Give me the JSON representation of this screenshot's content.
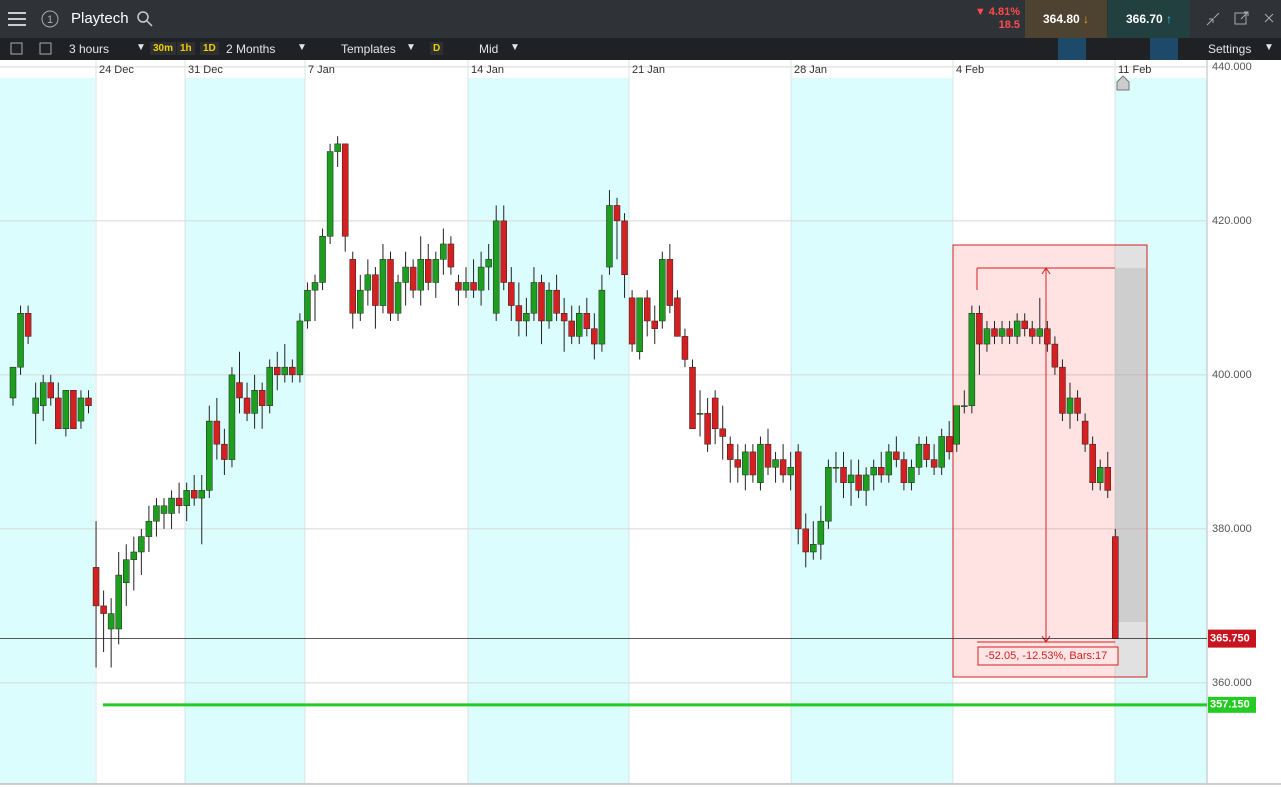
{
  "header": {
    "title": "Playtech",
    "change_pct": "▼ 4.81%",
    "change_abs": "18.5",
    "sell": "364.80",
    "buy": "366.70"
  },
  "toolbar": {
    "interval": "3 hours",
    "quick": [
      "30m",
      "1h",
      "1D"
    ],
    "range": "2 Months",
    "templates": "Templates",
    "d": "D",
    "price_type": "Mid",
    "settings": "Settings"
  },
  "chart_data": {
    "type": "candlestick",
    "x_labels": [
      "24 Dec",
      "31 Dec",
      "7 Jan",
      "14 Jan",
      "21 Jan",
      "28 Jan",
      "4 Feb",
      "11 Feb"
    ],
    "up_color": "#1e9e1e",
    "down_color": "#d42020",
    "ylim": [
      347,
      440.5
    ],
    "yticks": [
      {
        "value": 440,
        "label": "440.000"
      },
      {
        "value": 420,
        "label": "420.000"
      },
      {
        "value": 400,
        "label": "400.000"
      },
      {
        "value": 380,
        "label": "380.000"
      },
      {
        "value": 360,
        "label": "360.000"
      }
    ],
    "candles": [
      [
        397,
        401,
        396,
        401
      ],
      [
        401,
        409,
        400,
        408
      ],
      [
        408,
        409,
        404,
        405
      ],
      [
        395,
        399,
        391,
        397
      ],
      [
        396,
        400,
        394,
        399
      ],
      [
        399,
        400,
        396,
        397
      ],
      [
        397,
        399,
        393,
        393
      ],
      [
        393,
        398,
        392,
        398
      ],
      [
        398,
        398,
        393,
        393
      ],
      [
        394,
        398,
        393,
        397
      ],
      [
        397,
        398,
        395,
        396
      ],
      [
        375,
        381,
        362,
        370
      ],
      [
        370,
        372,
        364,
        369
      ],
      [
        367,
        371,
        362,
        369
      ],
      [
        367,
        377,
        365,
        374
      ],
      [
        373,
        378,
        370,
        376
      ],
      [
        376,
        379,
        372,
        377
      ],
      [
        377,
        380,
        374,
        379
      ],
      [
        379,
        383,
        377,
        381
      ],
      [
        381,
        384,
        379,
        383
      ],
      [
        382,
        384,
        380,
        383
      ],
      [
        382,
        385,
        380,
        384
      ],
      [
        384,
        386,
        382,
        383
      ],
      [
        383,
        386,
        381,
        385
      ],
      [
        385,
        387,
        383,
        384
      ],
      [
        384,
        387,
        378,
        385
      ],
      [
        385,
        396,
        384,
        394
      ],
      [
        394,
        397,
        389,
        391
      ],
      [
        391,
        393,
        387,
        389
      ],
      [
        389,
        401,
        388,
        400
      ],
      [
        399,
        403,
        395,
        397
      ],
      [
        397,
        399,
        394,
        395
      ],
      [
        395,
        400,
        393,
        398
      ],
      [
        398,
        399,
        393,
        396
      ],
      [
        396,
        402,
        395,
        401
      ],
      [
        401,
        403,
        398,
        400
      ],
      [
        400,
        404,
        399,
        401
      ],
      [
        401,
        402,
        399,
        400
      ],
      [
        400,
        408,
        399,
        407
      ],
      [
        407,
        412,
        406,
        411
      ],
      [
        411,
        413,
        407,
        412
      ],
      [
        412,
        419,
        411,
        418
      ],
      [
        418,
        430,
        417,
        429
      ],
      [
        429,
        431,
        427,
        430
      ],
      [
        430,
        430,
        416,
        418
      ],
      [
        415,
        416,
        406,
        408
      ],
      [
        408,
        413,
        407,
        411
      ],
      [
        411,
        415,
        409,
        413
      ],
      [
        413,
        414,
        406,
        409
      ],
      [
        409,
        417,
        408,
        415
      ],
      [
        415,
        416,
        407,
        408
      ],
      [
        408,
        413,
        407,
        412
      ],
      [
        412,
        416,
        409,
        414
      ],
      [
        414,
        415,
        410,
        411
      ],
      [
        411,
        418,
        409,
        415
      ],
      [
        415,
        417,
        411,
        412
      ],
      [
        412,
        416,
        410,
        415
      ],
      [
        415,
        419,
        413,
        417
      ],
      [
        417,
        418,
        413,
        414
      ],
      [
        412,
        413,
        409,
        411
      ],
      [
        411,
        414,
        410,
        412
      ],
      [
        412,
        415,
        410,
        411
      ],
      [
        411,
        416,
        409,
        414
      ],
      [
        414,
        417,
        411,
        415
      ],
      [
        408,
        422,
        407,
        420
      ],
      [
        420,
        422,
        411,
        412
      ],
      [
        412,
        414,
        407,
        409
      ],
      [
        409,
        412,
        405,
        407
      ],
      [
        407,
        410,
        405,
        408
      ],
      [
        408,
        414,
        407,
        412
      ],
      [
        412,
        413,
        404,
        407
      ],
      [
        407,
        412,
        406,
        411
      ],
      [
        411,
        413,
        407,
        408
      ],
      [
        408,
        410,
        403,
        407
      ],
      [
        407,
        409,
        404,
        405
      ],
      [
        405,
        409,
        404,
        408
      ],
      [
        408,
        410,
        405,
        406
      ],
      [
        406,
        408,
        402,
        404
      ],
      [
        404,
        413,
        403,
        411
      ],
      [
        414,
        424,
        413,
        422
      ],
      [
        422,
        423,
        415,
        420
      ],
      [
        420,
        421,
        410,
        413
      ],
      [
        410,
        411,
        403,
        404
      ],
      [
        403,
        410,
        402,
        410
      ],
      [
        410,
        411,
        405,
        407
      ],
      [
        407,
        409,
        404,
        406
      ],
      [
        407,
        416,
        406,
        415
      ],
      [
        415,
        417,
        408,
        409
      ],
      [
        410,
        411,
        405,
        405
      ],
      [
        405,
        406,
        401,
        402
      ],
      [
        401,
        402,
        393,
        393
      ],
      [
        395,
        398,
        392,
        395
      ],
      [
        395,
        397,
        390,
        391
      ],
      [
        397,
        398,
        391,
        393
      ],
      [
        393,
        396,
        389,
        392
      ],
      [
        391,
        392,
        386,
        389
      ],
      [
        389,
        391,
        386,
        388
      ],
      [
        387,
        391,
        385,
        390
      ],
      [
        390,
        391,
        386,
        387
      ],
      [
        386,
        392,
        385,
        391
      ],
      [
        391,
        393,
        387,
        388
      ],
      [
        388,
        390,
        386,
        389
      ],
      [
        389,
        391,
        386,
        387
      ],
      [
        387,
        390,
        385,
        388
      ],
      [
        390,
        391,
        378,
        380
      ],
      [
        380,
        382,
        375,
        377
      ],
      [
        377,
        381,
        376,
        378
      ],
      [
        378,
        383,
        376,
        381
      ],
      [
        381,
        389,
        380,
        388
      ],
      [
        388,
        390,
        386,
        388
      ],
      [
        388,
        390,
        384,
        386
      ],
      [
        386,
        389,
        383,
        387
      ],
      [
        387,
        389,
        384,
        385
      ],
      [
        385,
        388,
        383,
        387
      ],
      [
        387,
        389,
        385,
        388
      ],
      [
        388,
        390,
        386,
        387
      ],
      [
        387,
        391,
        386,
        390
      ],
      [
        390,
        392,
        388,
        389
      ],
      [
        389,
        390,
        385,
        386
      ],
      [
        386,
        389,
        385,
        388
      ],
      [
        388,
        392,
        387,
        391
      ],
      [
        391,
        392,
        388,
        389
      ],
      [
        389,
        391,
        387,
        388
      ],
      [
        388,
        393,
        387,
        392
      ],
      [
        392,
        394,
        389,
        390
      ],
      [
        391,
        396,
        390,
        396
      ],
      [
        396,
        398,
        395,
        396
      ],
      [
        396,
        409,
        395,
        408
      ],
      [
        408,
        409,
        400,
        404
      ],
      [
        404,
        407,
        403,
        406
      ],
      [
        406,
        407,
        404,
        405
      ],
      [
        405,
        407,
        404,
        406
      ],
      [
        406,
        407,
        404,
        405
      ],
      [
        405,
        408,
        404,
        407
      ],
      [
        407,
        408,
        405,
        406
      ],
      [
        406,
        407,
        404,
        405
      ],
      [
        405,
        410,
        404,
        406
      ],
      [
        406,
        407,
        403,
        404
      ],
      [
        404,
        405,
        400,
        401
      ],
      [
        401,
        402,
        394,
        395
      ],
      [
        395,
        399,
        393,
        397
      ],
      [
        397,
        398,
        394,
        395
      ],
      [
        394,
        395,
        390,
        391
      ],
      [
        391,
        392,
        385,
        386
      ],
      [
        386,
        389,
        385,
        388
      ],
      [
        388,
        390,
        384,
        385
      ],
      [
        379,
        380,
        365.75,
        365.75
      ]
    ],
    "current_price": {
      "value": 365.75,
      "label": "365.750",
      "color": "#c8141e"
    },
    "support_line": {
      "value": 357.15,
      "label": "357.150",
      "color": "#22cc22"
    },
    "measure": {
      "label": "-52.05, -12.53%, Bars:17"
    }
  }
}
